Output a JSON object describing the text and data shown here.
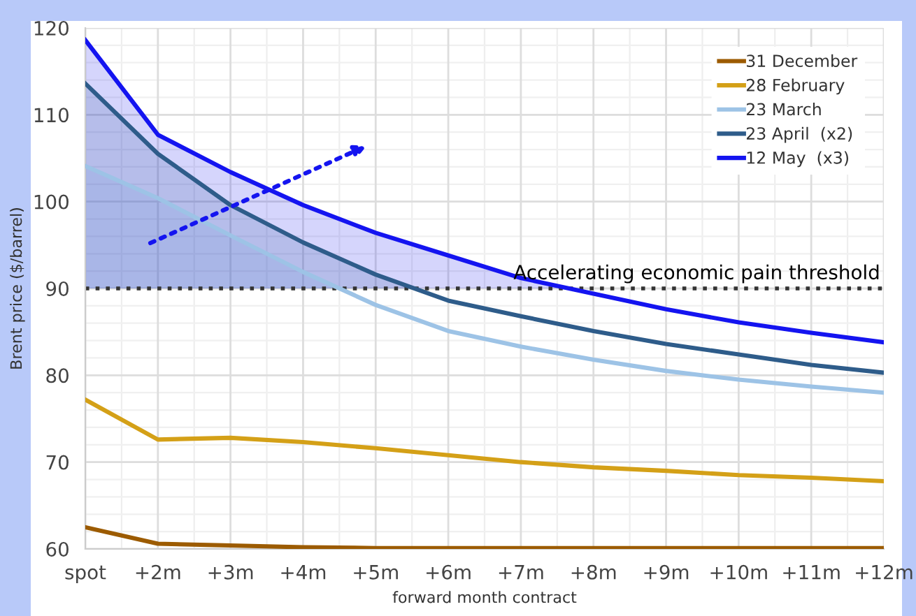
{
  "chart_data": {
    "type": "line",
    "xlabel": "forward month contract",
    "ylabel": "Brent price ($/barrel)",
    "categories": [
      "spot",
      "+2m",
      "+3m",
      "+4m",
      "+5m",
      "+6m",
      "+7m",
      "+8m",
      "+9m",
      "+10m",
      "+11m",
      "+12m"
    ],
    "ylim": [
      60,
      120
    ],
    "yticks": [
      60,
      70,
      80,
      90,
      100,
      110,
      120
    ],
    "grid": true,
    "legend": "top right",
    "series": [
      {
        "name": "31 December",
        "color": "#9c5b00",
        "values": [
          62.5,
          60.6,
          60.4,
          60.2,
          60.1,
          60.1,
          60.1,
          60.1,
          60.1,
          60.1,
          60.1,
          60.1
        ]
      },
      {
        "name": "28 February",
        "color": "#d4a017",
        "values": [
          77.2,
          72.6,
          72.8,
          72.3,
          71.6,
          70.8,
          70.0,
          69.4,
          69.0,
          68.5,
          68.2,
          67.8
        ]
      },
      {
        "name": "23 March",
        "color": "#9dc3e6",
        "values": [
          104.1,
          100.4,
          96.1,
          91.9,
          88.1,
          85.1,
          83.3,
          81.8,
          80.5,
          79.5,
          78.7,
          78.0
        ]
      },
      {
        "name": "23 April  (x2)",
        "color": "#2e5c8a",
        "values": [
          113.6,
          105.5,
          99.6,
          95.3,
          91.6,
          88.6,
          86.8,
          85.1,
          83.6,
          82.4,
          81.2,
          80.3
        ]
      },
      {
        "name": "12 May  (x3)",
        "color": "#1414f0",
        "values": [
          118.6,
          107.7,
          103.4,
          99.6,
          96.4,
          93.8,
          91.2,
          89.4,
          87.6,
          86.1,
          84.9,
          83.8
        ]
      }
    ],
    "ref_lines": [
      {
        "axis": "y",
        "value": 90,
        "label": "Accelerating economic pain threshold",
        "color": "#333333",
        "line_style": "dotted"
      }
    ]
  }
}
